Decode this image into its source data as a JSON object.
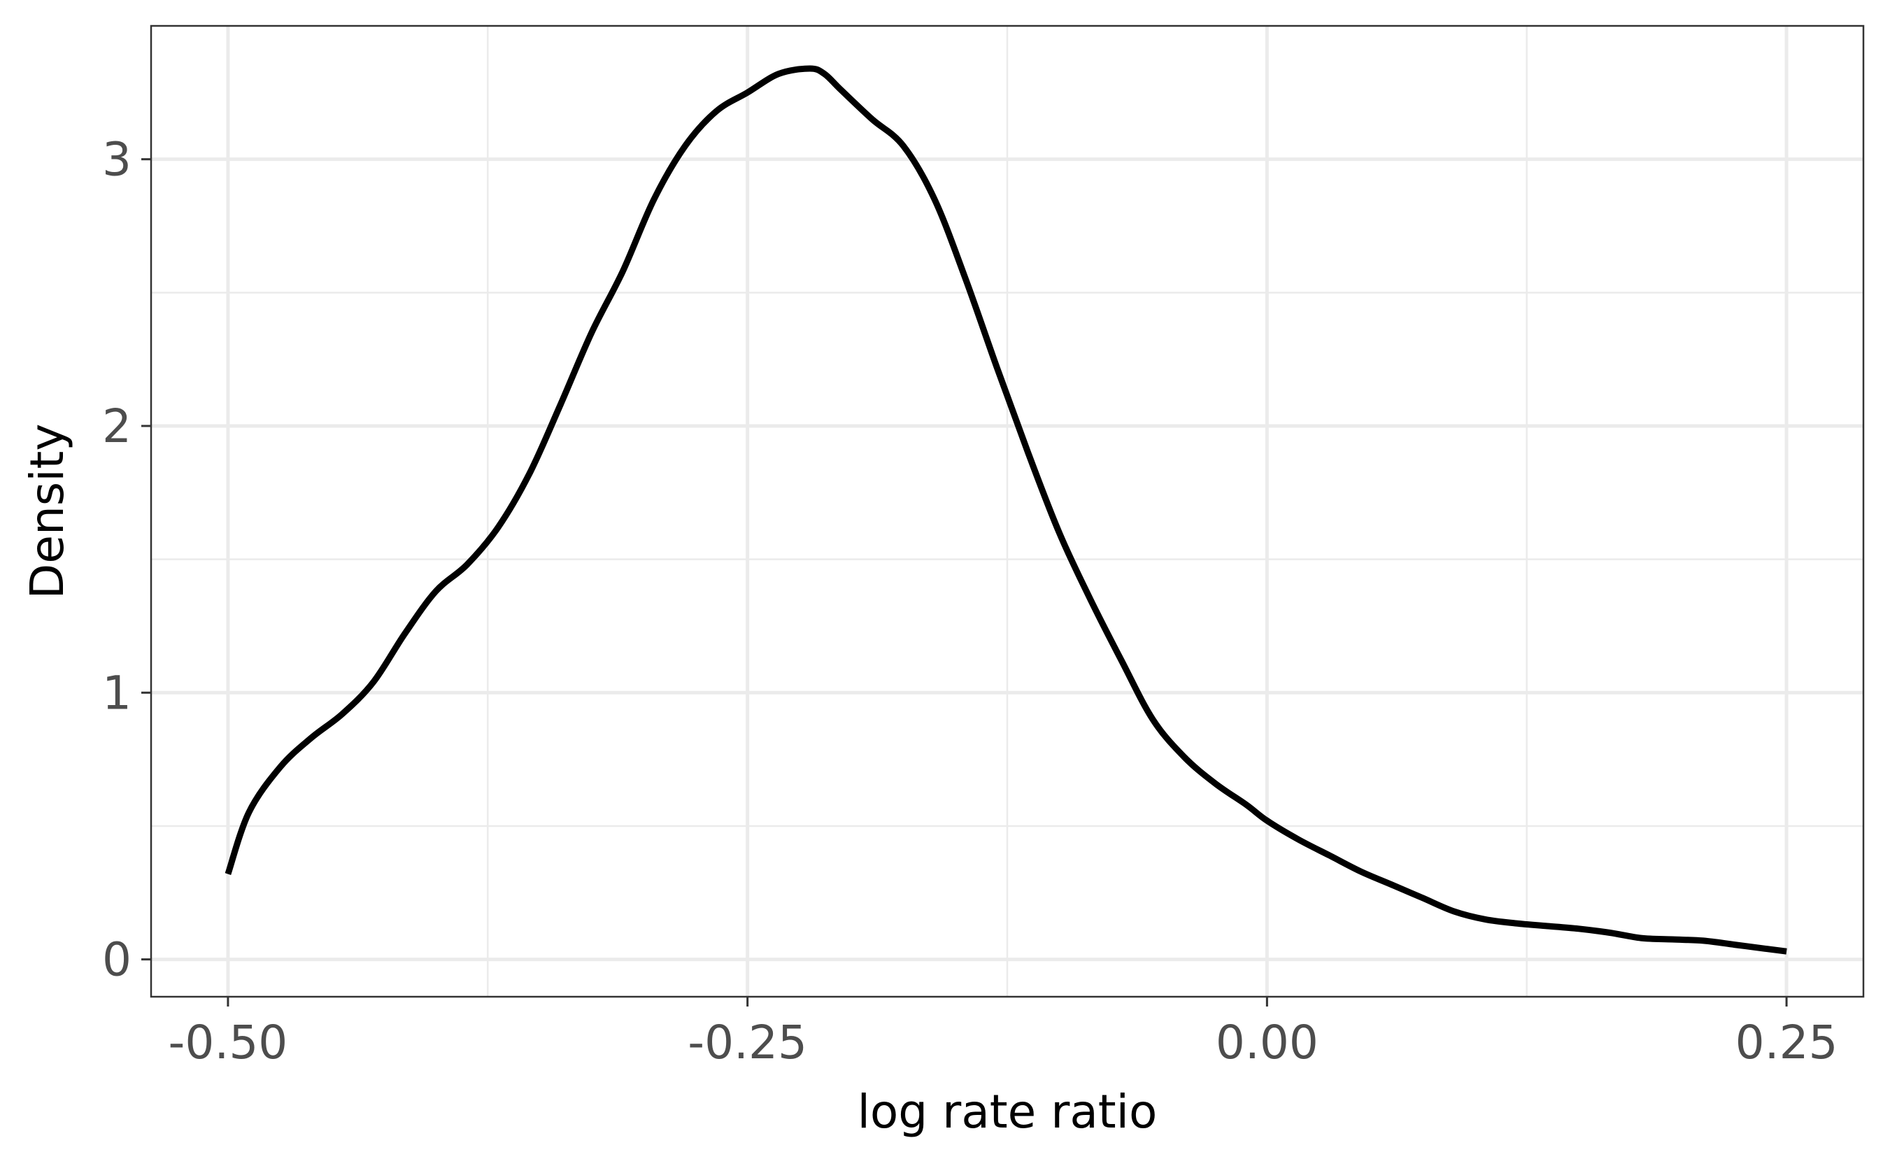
{
  "chart_data": {
    "type": "line",
    "title": "",
    "xlabel": "log rate ratio",
    "ylabel": "Density",
    "xlim": [
      -0.537,
      0.287
    ],
    "ylim": [
      -0.14,
      3.5
    ],
    "x_ticks": [
      -0.5,
      -0.25,
      0.0,
      0.25
    ],
    "x_tick_labels": [
      "-0.50",
      "-0.25",
      "0.00",
      "0.25"
    ],
    "y_ticks": [
      0,
      1,
      2,
      3
    ],
    "y_tick_labels": [
      "0",
      "1",
      "2",
      "3"
    ],
    "x_minor_ticks": [
      -0.375,
      -0.125,
      0.125
    ],
    "y_minor_ticks": [
      0.5,
      1.5,
      2.5
    ],
    "grid": true,
    "legend": "none",
    "colors": {
      "line": "#000000",
      "grid": "#ebebeb",
      "panel_border": "#333333",
      "tick_label": "#4d4d4d",
      "background": "#ffffff"
    },
    "series": [
      {
        "x": [
          -0.5,
          -0.49,
          -0.475,
          -0.46,
          -0.445,
          -0.43,
          -0.415,
          -0.4,
          -0.385,
          -0.37,
          -0.355,
          -0.34,
          -0.325,
          -0.31,
          -0.295,
          -0.28,
          -0.265,
          -0.25,
          -0.235,
          -0.22,
          -0.213,
          -0.205,
          -0.19,
          -0.175,
          -0.16,
          -0.145,
          -0.13,
          -0.115,
          -0.1,
          -0.085,
          -0.07,
          -0.055,
          -0.04,
          -0.025,
          -0.01,
          0.0,
          0.015,
          0.03,
          0.045,
          0.06,
          0.075,
          0.09,
          0.105,
          0.12,
          0.135,
          0.15,
          0.165,
          0.18,
          0.195,
          0.21,
          0.225,
          0.24,
          0.25
        ],
        "values": [
          0.32,
          0.55,
          0.72,
          0.83,
          0.92,
          1.04,
          1.22,
          1.38,
          1.48,
          1.62,
          1.82,
          2.08,
          2.35,
          2.58,
          2.85,
          3.05,
          3.18,
          3.25,
          3.32,
          3.34,
          3.32,
          3.26,
          3.15,
          3.05,
          2.85,
          2.55,
          2.22,
          1.9,
          1.6,
          1.35,
          1.12,
          0.9,
          0.76,
          0.66,
          0.58,
          0.52,
          0.45,
          0.39,
          0.33,
          0.28,
          0.23,
          0.18,
          0.15,
          0.135,
          0.125,
          0.115,
          0.1,
          0.08,
          0.075,
          0.07,
          0.055,
          0.04,
          0.03
        ]
      }
    ]
  }
}
